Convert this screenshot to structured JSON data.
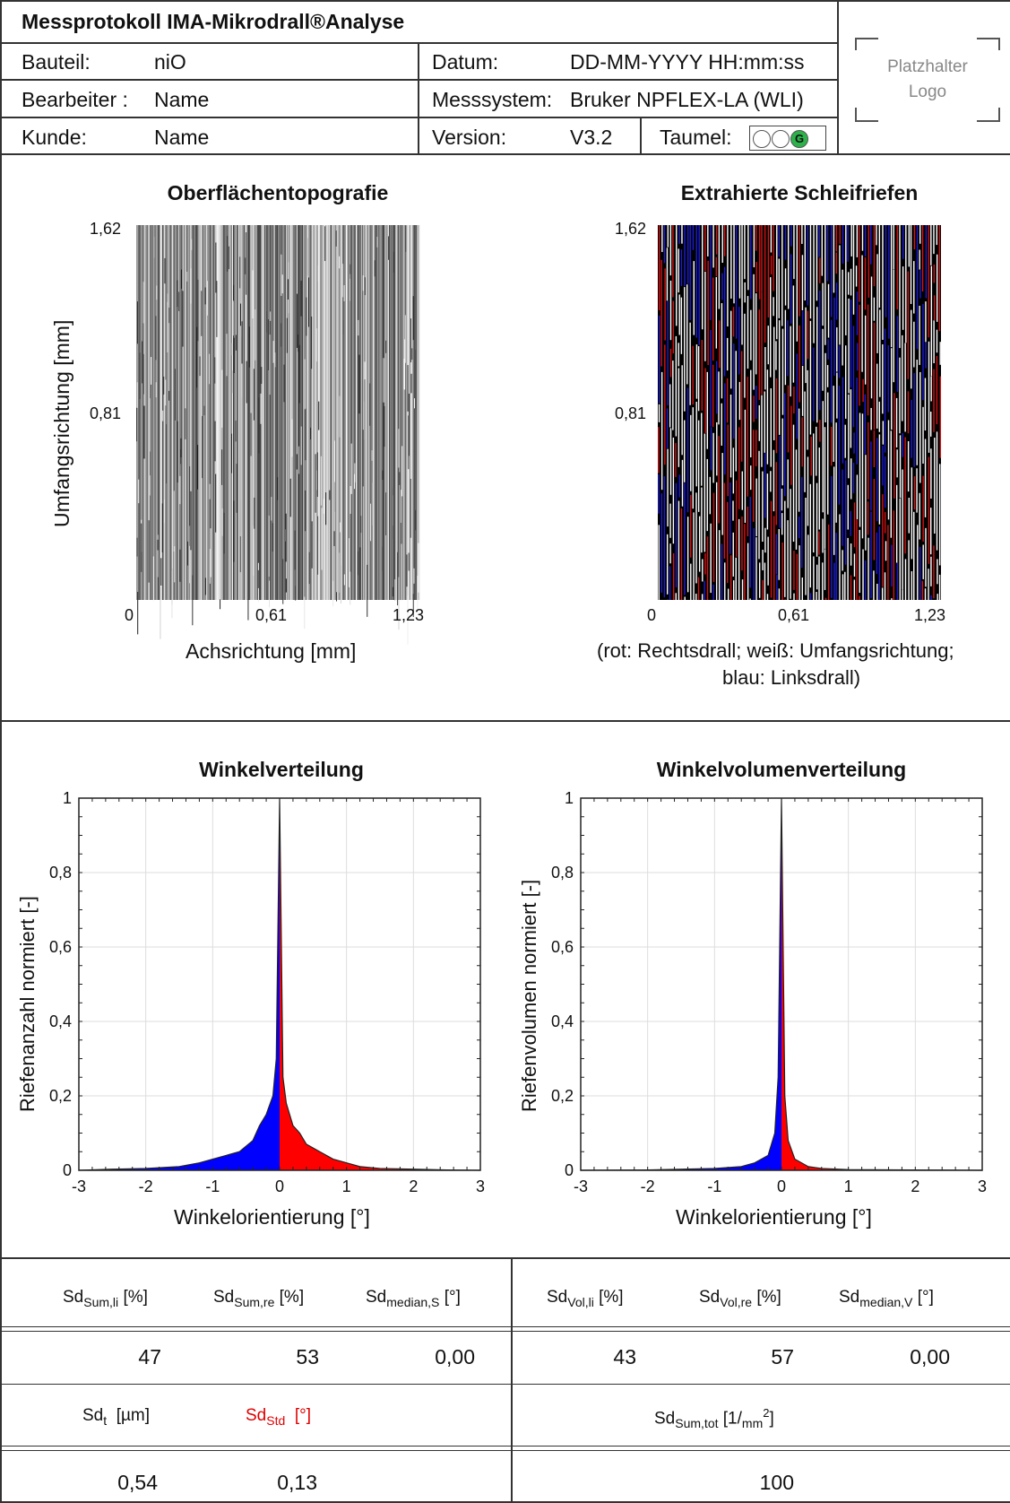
{
  "header": {
    "title": "Messprotokoll IMA-Mikrodrall®Analyse",
    "bauteil_label": "Bauteil:",
    "bauteil_value": "niO",
    "bearbeiter_label": "Bearbeiter :",
    "bearbeiter_value": "Name",
    "kunde_label": "Kunde:",
    "kunde_value": "Name",
    "datum_label": "Datum:",
    "datum_value": "DD-MM-YYYY HH:mm:ss",
    "messsystem_label": "Messsystem:",
    "messsystem_value": "Bruker NPFLEX-LA (WLI)",
    "version_label": "Version:",
    "version_value": "V3.2",
    "taumel_label": "Taumel:",
    "taumel_state": "G",
    "taumel_active_color": "#2bb34a",
    "logo_line1": "Platzhalter",
    "logo_line2": "Logo"
  },
  "topography": {
    "title": "Oberflächentopografie",
    "ylabel": "Umfangsrichtung [mm]",
    "xlabel": "Achsrichtung [mm]",
    "y_ticks": [
      "1,62",
      "0,81"
    ],
    "x_ticks": [
      "0",
      "0,61",
      "1,23"
    ]
  },
  "grooves": {
    "title": "Extrahierte Schleifriefen",
    "y_ticks": [
      "1,62",
      "0,81"
    ],
    "x_ticks": [
      "0",
      "0,61",
      "1,23"
    ],
    "legend_line1": "(rot: Rechtsdrall; weiß: Umfangsrichtung;",
    "legend_line2": "blau: Linksdrall)",
    "colors": {
      "right": "#d41414",
      "left": "#1c1cd6",
      "circ": "#ffffff",
      "bg": "#000000"
    }
  },
  "chart_data": [
    {
      "type": "area",
      "title": "Winkelverteilung",
      "xlabel": "Winkelorientierung [°]",
      "ylabel": "Riefenanzahl normiert  [-]",
      "xlim": [
        -3,
        3
      ],
      "ylim": [
        0,
        1
      ],
      "x_ticks": [
        "-3",
        "-2",
        "-1",
        "0",
        "1",
        "2",
        "3"
      ],
      "y_ticks": [
        "0",
        "0,2",
        "0,4",
        "0,6",
        "0,8",
        "1"
      ],
      "grid": true,
      "left_color": "#0000ff",
      "right_color": "#ff0000",
      "x": [
        -3,
        -2.5,
        -2,
        -1.5,
        -1.2,
        -1,
        -0.8,
        -0.6,
        -0.4,
        -0.3,
        -0.2,
        -0.1,
        -0.05,
        0,
        0.05,
        0.1,
        0.2,
        0.3,
        0.4,
        0.6,
        0.8,
        1,
        1.2,
        1.5,
        2,
        2.5,
        3
      ],
      "y": [
        0,
        0.003,
        0.005,
        0.01,
        0.02,
        0.03,
        0.04,
        0.05,
        0.08,
        0.12,
        0.15,
        0.2,
        0.3,
        1.0,
        0.25,
        0.18,
        0.12,
        0.1,
        0.07,
        0.05,
        0.03,
        0.02,
        0.01,
        0.005,
        0.003,
        0.001,
        0
      ]
    },
    {
      "type": "area",
      "title": "Winkelvolumenverteilung",
      "xlabel": "Winkelorientierung [°]",
      "ylabel": "Riefenvolumen normiert  [-]",
      "xlim": [
        -3,
        3
      ],
      "ylim": [
        0,
        1
      ],
      "x_ticks": [
        "-3",
        "-2",
        "-1",
        "0",
        "1",
        "2",
        "3"
      ],
      "y_ticks": [
        "0",
        "0,2",
        "0,4",
        "0,6",
        "0,8",
        "1"
      ],
      "grid": true,
      "left_color": "#0000ff",
      "right_color": "#ff0000",
      "x": [
        -3,
        -2,
        -1,
        -0.6,
        -0.4,
        -0.2,
        -0.1,
        -0.05,
        0,
        0.05,
        0.1,
        0.2,
        0.4,
        0.6,
        1,
        2,
        3
      ],
      "y": [
        0,
        0.001,
        0.005,
        0.01,
        0.02,
        0.04,
        0.1,
        0.25,
        1.0,
        0.2,
        0.08,
        0.03,
        0.01,
        0.005,
        0.002,
        0.001,
        0
      ]
    }
  ],
  "stats": {
    "row1_labels": {
      "sum_li": {
        "base": "Sd",
        "sub": "Sum,li",
        "unit": "[%]"
      },
      "sum_re": {
        "base": "Sd",
        "sub": "Sum,re",
        "unit": "[%]"
      },
      "median_s": {
        "base": "Sd",
        "sub": "median,S",
        "unit": "[°]"
      },
      "vol_li": {
        "base": "Sd",
        "sub": "Vol,li",
        "unit": "[%]"
      },
      "vol_re": {
        "base": "Sd",
        "sub": "Vol,re",
        "unit": "[%]"
      },
      "median_v": {
        "base": "Sd",
        "sub": "median,V",
        "unit": "[°]"
      }
    },
    "row1_values": {
      "sum_li": "47",
      "sum_re": "53",
      "median_s": "0,00",
      "vol_li": "43",
      "vol_re": "57",
      "median_v": "0,00"
    },
    "row2_labels": {
      "t": {
        "base": "Sd",
        "sub": "t",
        "unit": "[µm]"
      },
      "std": {
        "base": "Sd",
        "sub": "Std",
        "unit": "[°]"
      },
      "sum_tot": {
        "base": "Sd",
        "sub": "Sum,tot",
        "unit_pre": "[1/",
        "unit_sub": "mm",
        "unit_sup": "2",
        "unit_post": "]"
      }
    },
    "row2_values": {
      "t": "0,54",
      "std": "0,13",
      "sum_tot": "100"
    },
    "highlight_color": "#e00000"
  }
}
